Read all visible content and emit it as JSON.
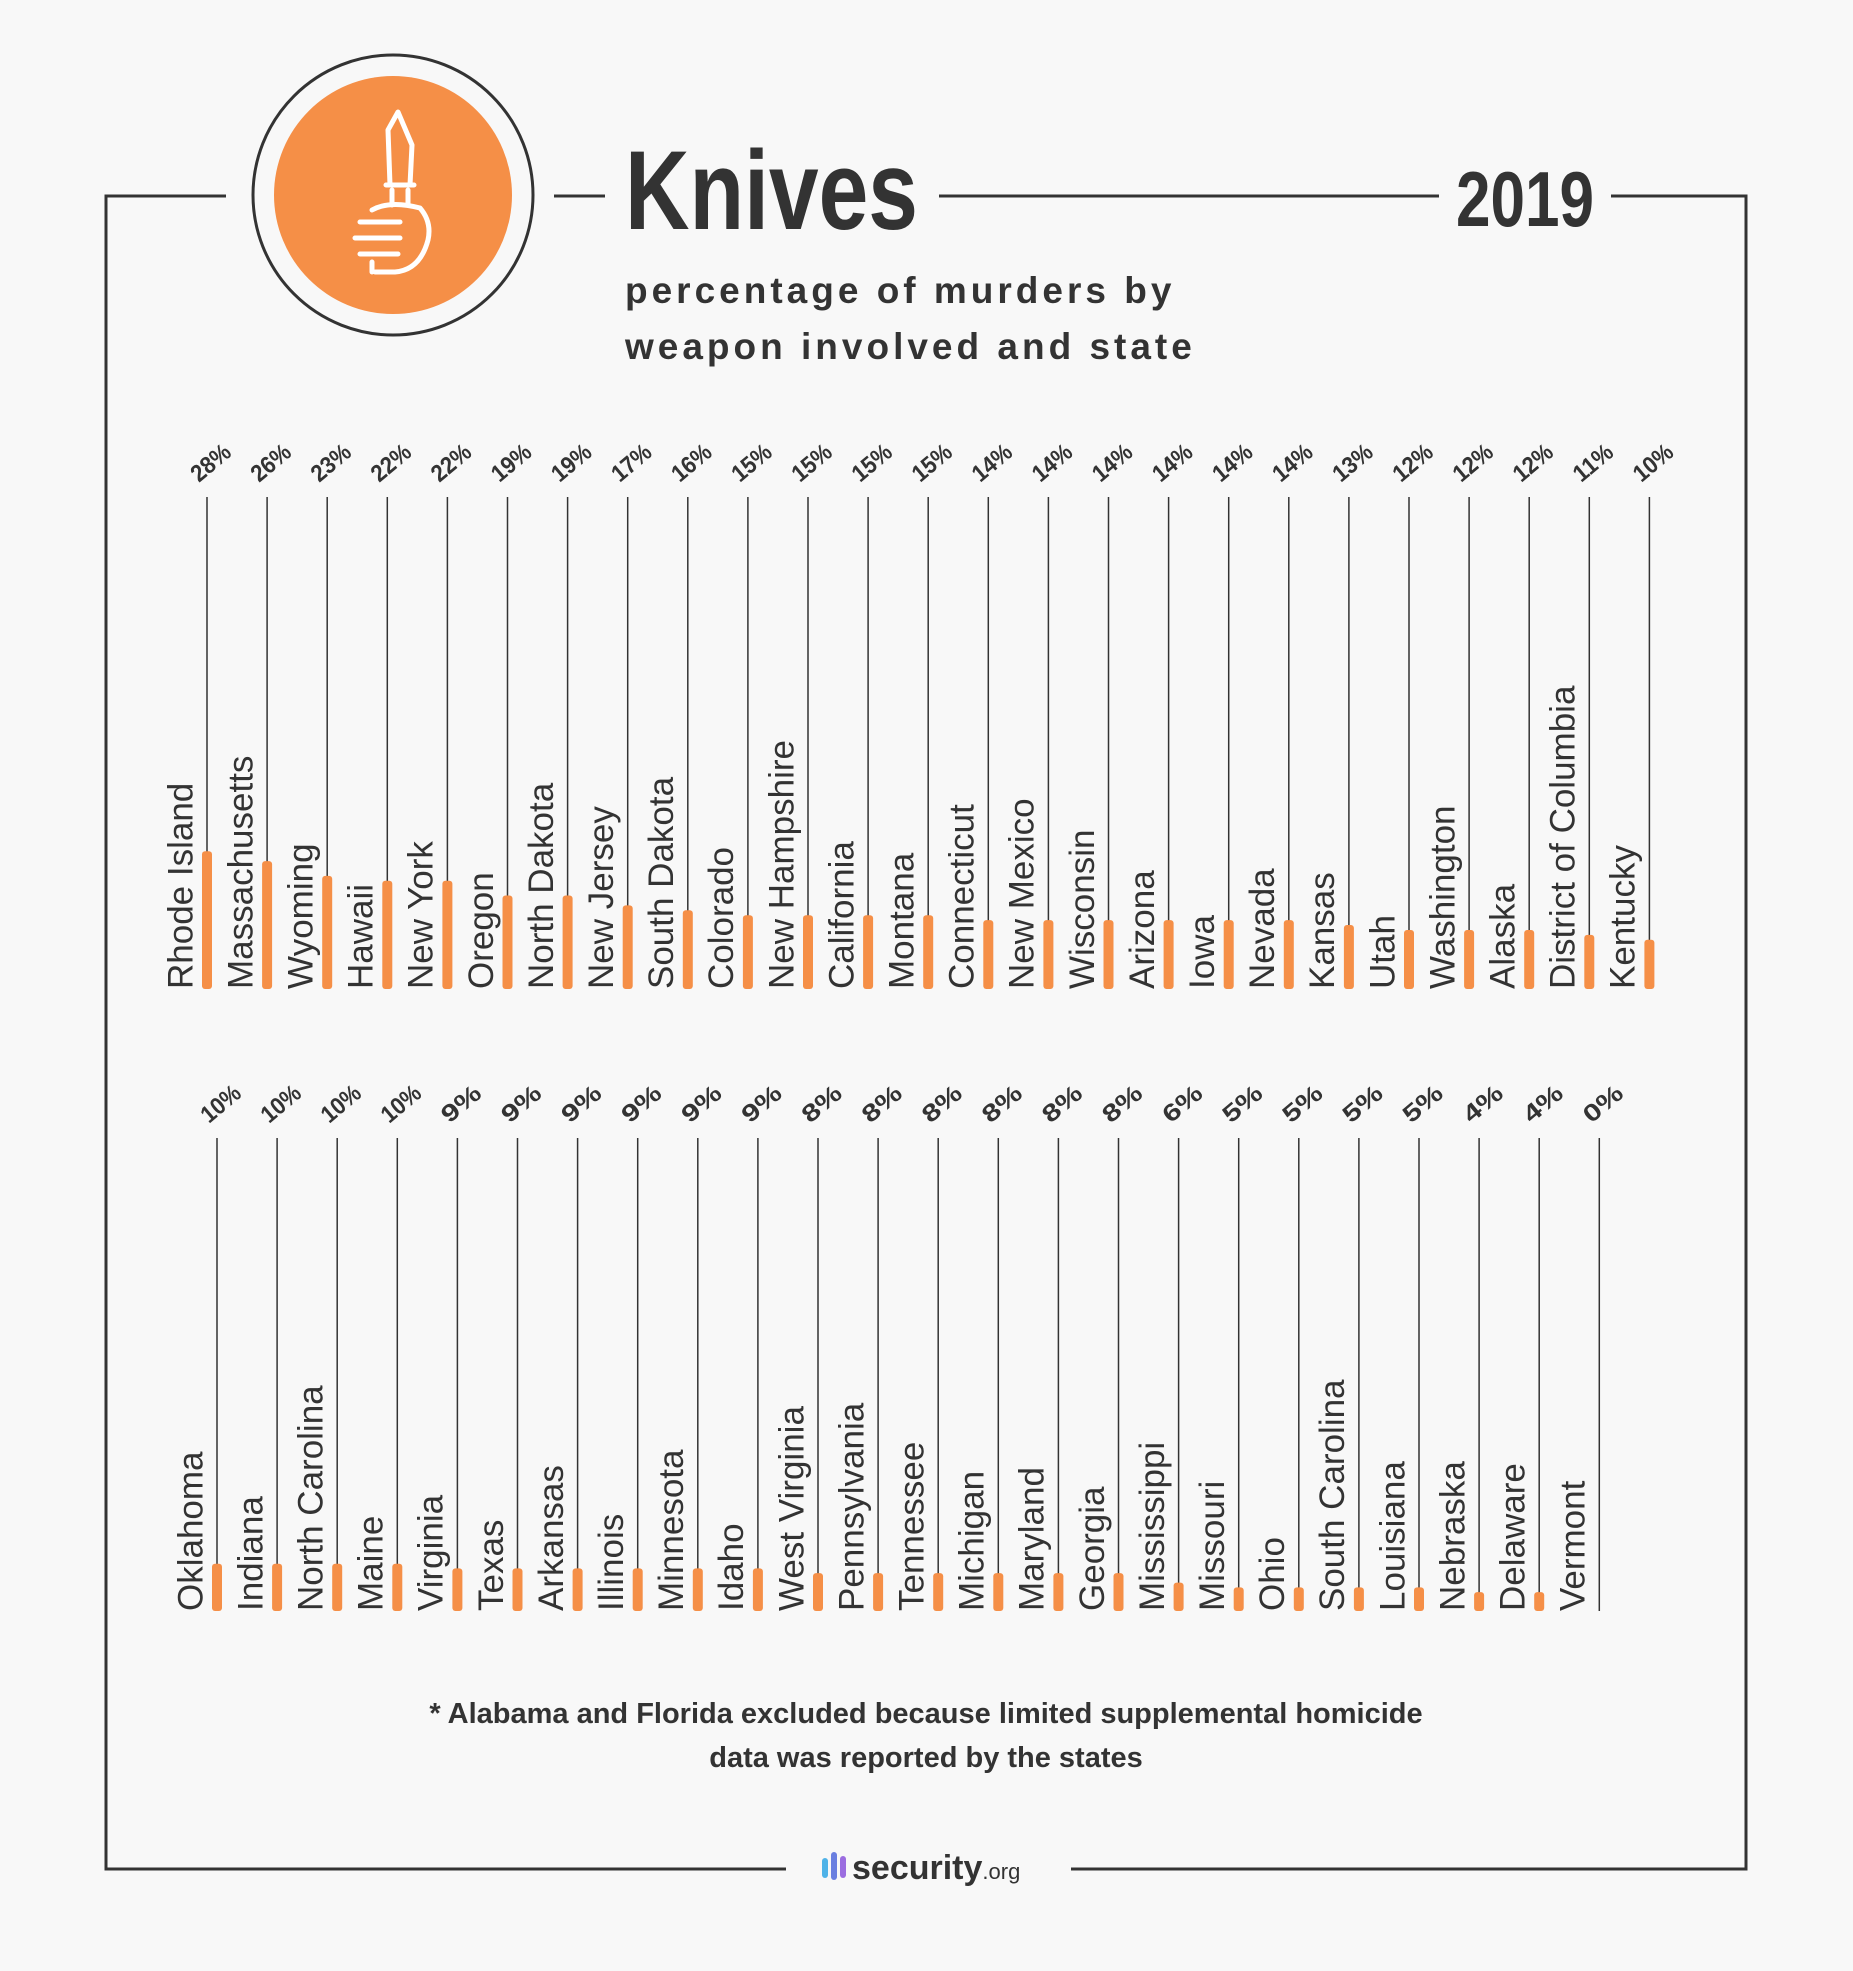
{
  "header": {
    "title": "Knives",
    "year": "2019",
    "subtitle": [
      "percentage of murders by",
      "weapon involved and state"
    ]
  },
  "chart_data": [
    {
      "type": "bar",
      "categories": [
        "Rhode Island",
        "Massachusetts",
        "Wyoming",
        "Hawaii",
        "New York",
        "Oregon",
        "North Dakota",
        "New Jersey",
        "South Dakota",
        "Colorado",
        "New Hampshire",
        "California",
        "Montana",
        "Connecticut",
        "New Mexico",
        "Wisconsin",
        "Arizona",
        "Iowa",
        "Nevada",
        "Kansas",
        "Utah",
        "Washington",
        "Alaska",
        "District of Columbia",
        "Kentucky"
      ],
      "values": [
        28,
        26,
        23,
        22,
        22,
        19,
        19,
        17,
        16,
        15,
        15,
        15,
        15,
        14,
        14,
        14,
        14,
        14,
        14,
        13,
        12,
        12,
        12,
        11,
        10
      ],
      "value_labels": [
        "28%",
        "26%",
        "23%",
        "22%",
        "22%",
        "19%",
        "19%",
        "17%",
        "16%",
        "15%",
        "15%",
        "15%",
        "15%",
        "14%",
        "14%",
        "14%",
        "14%",
        "14%",
        "14%",
        "13%",
        "12%",
        "12%",
        "12%",
        "11%",
        "10%"
      ],
      "color": "#f58f47",
      "ylim": [
        0,
        100
      ]
    },
    {
      "type": "bar",
      "categories": [
        "Oklahoma",
        "Indiana",
        "North Carolina",
        "Maine",
        "Virginia",
        "Texas",
        "Arkansas",
        "Illinois",
        "Minnesota",
        "Idaho",
        "West Virginia",
        "Pennsylvania",
        "Tennessee",
        "Michigan",
        "Maryland",
        "Georgia",
        "Mississippi",
        "Missouri",
        "Ohio",
        "South Carolina",
        "Louisiana",
        "Nebraska",
        "Delaware",
        "Vermont"
      ],
      "values": [
        10,
        10,
        10,
        10,
        9,
        9,
        9,
        9,
        9,
        9,
        8,
        8,
        8,
        8,
        8,
        8,
        6,
        5,
        5,
        5,
        5,
        4,
        4,
        0
      ],
      "value_labels": [
        "10%",
        "10%",
        "10%",
        "10%",
        "9%",
        "9%",
        "9%",
        "9%",
        "9%",
        "9%",
        "8%",
        "8%",
        "8%",
        "8%",
        "8%",
        "8%",
        "6%",
        "5%",
        "5%",
        "5%",
        "5%",
        "4%",
        "4%",
        "0%"
      ],
      "color": "#f58f47",
      "ylim": [
        0,
        100
      ]
    }
  ],
  "footnote": [
    "* Alabama and Florida excluded because limited supplemental homicide",
    "data was reported by the states"
  ],
  "brand": {
    "name": "security",
    "suffix": ".org"
  }
}
